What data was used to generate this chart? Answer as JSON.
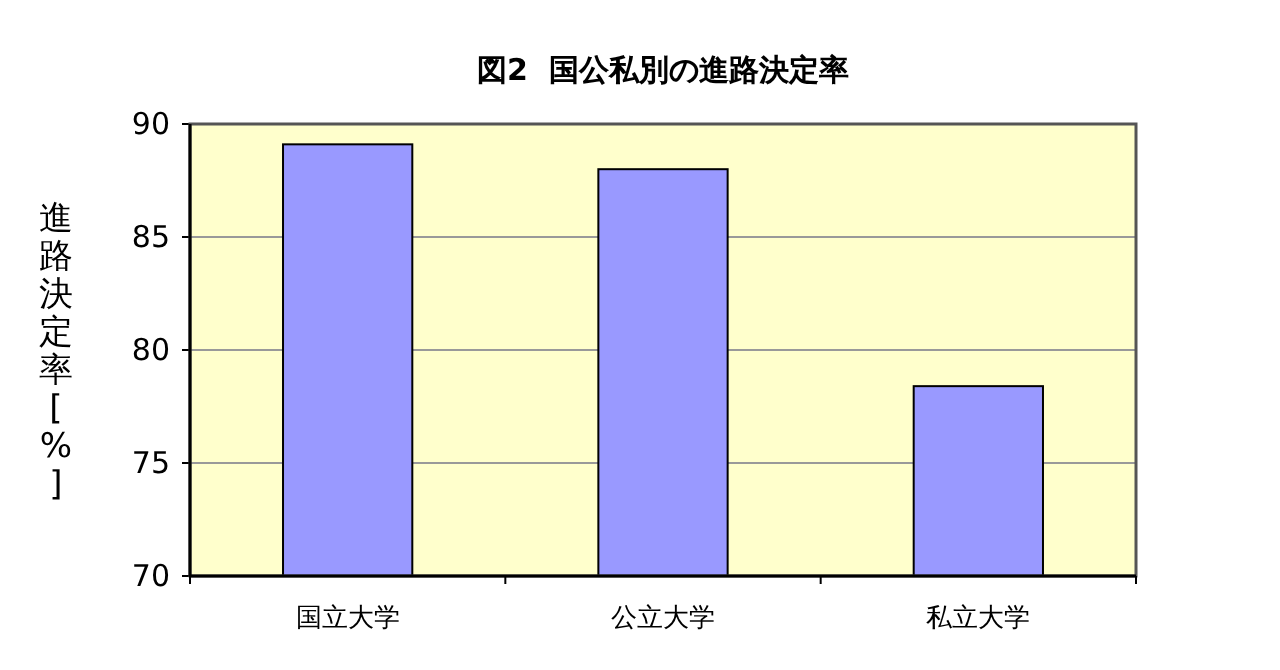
{
  "chart_data": {
    "type": "bar",
    "title": "図2  国公私別の進路決定率",
    "ylabel": "進路決定率[%]",
    "categories": [
      "国立大学",
      "公立大学",
      "私立大学"
    ],
    "values": [
      89.1,
      88.0,
      78.4
    ],
    "color": "#9999ff",
    "ylim": [
      70,
      90
    ],
    "yticks": [
      70,
      75,
      80,
      85,
      90
    ],
    "grid": "y"
  }
}
